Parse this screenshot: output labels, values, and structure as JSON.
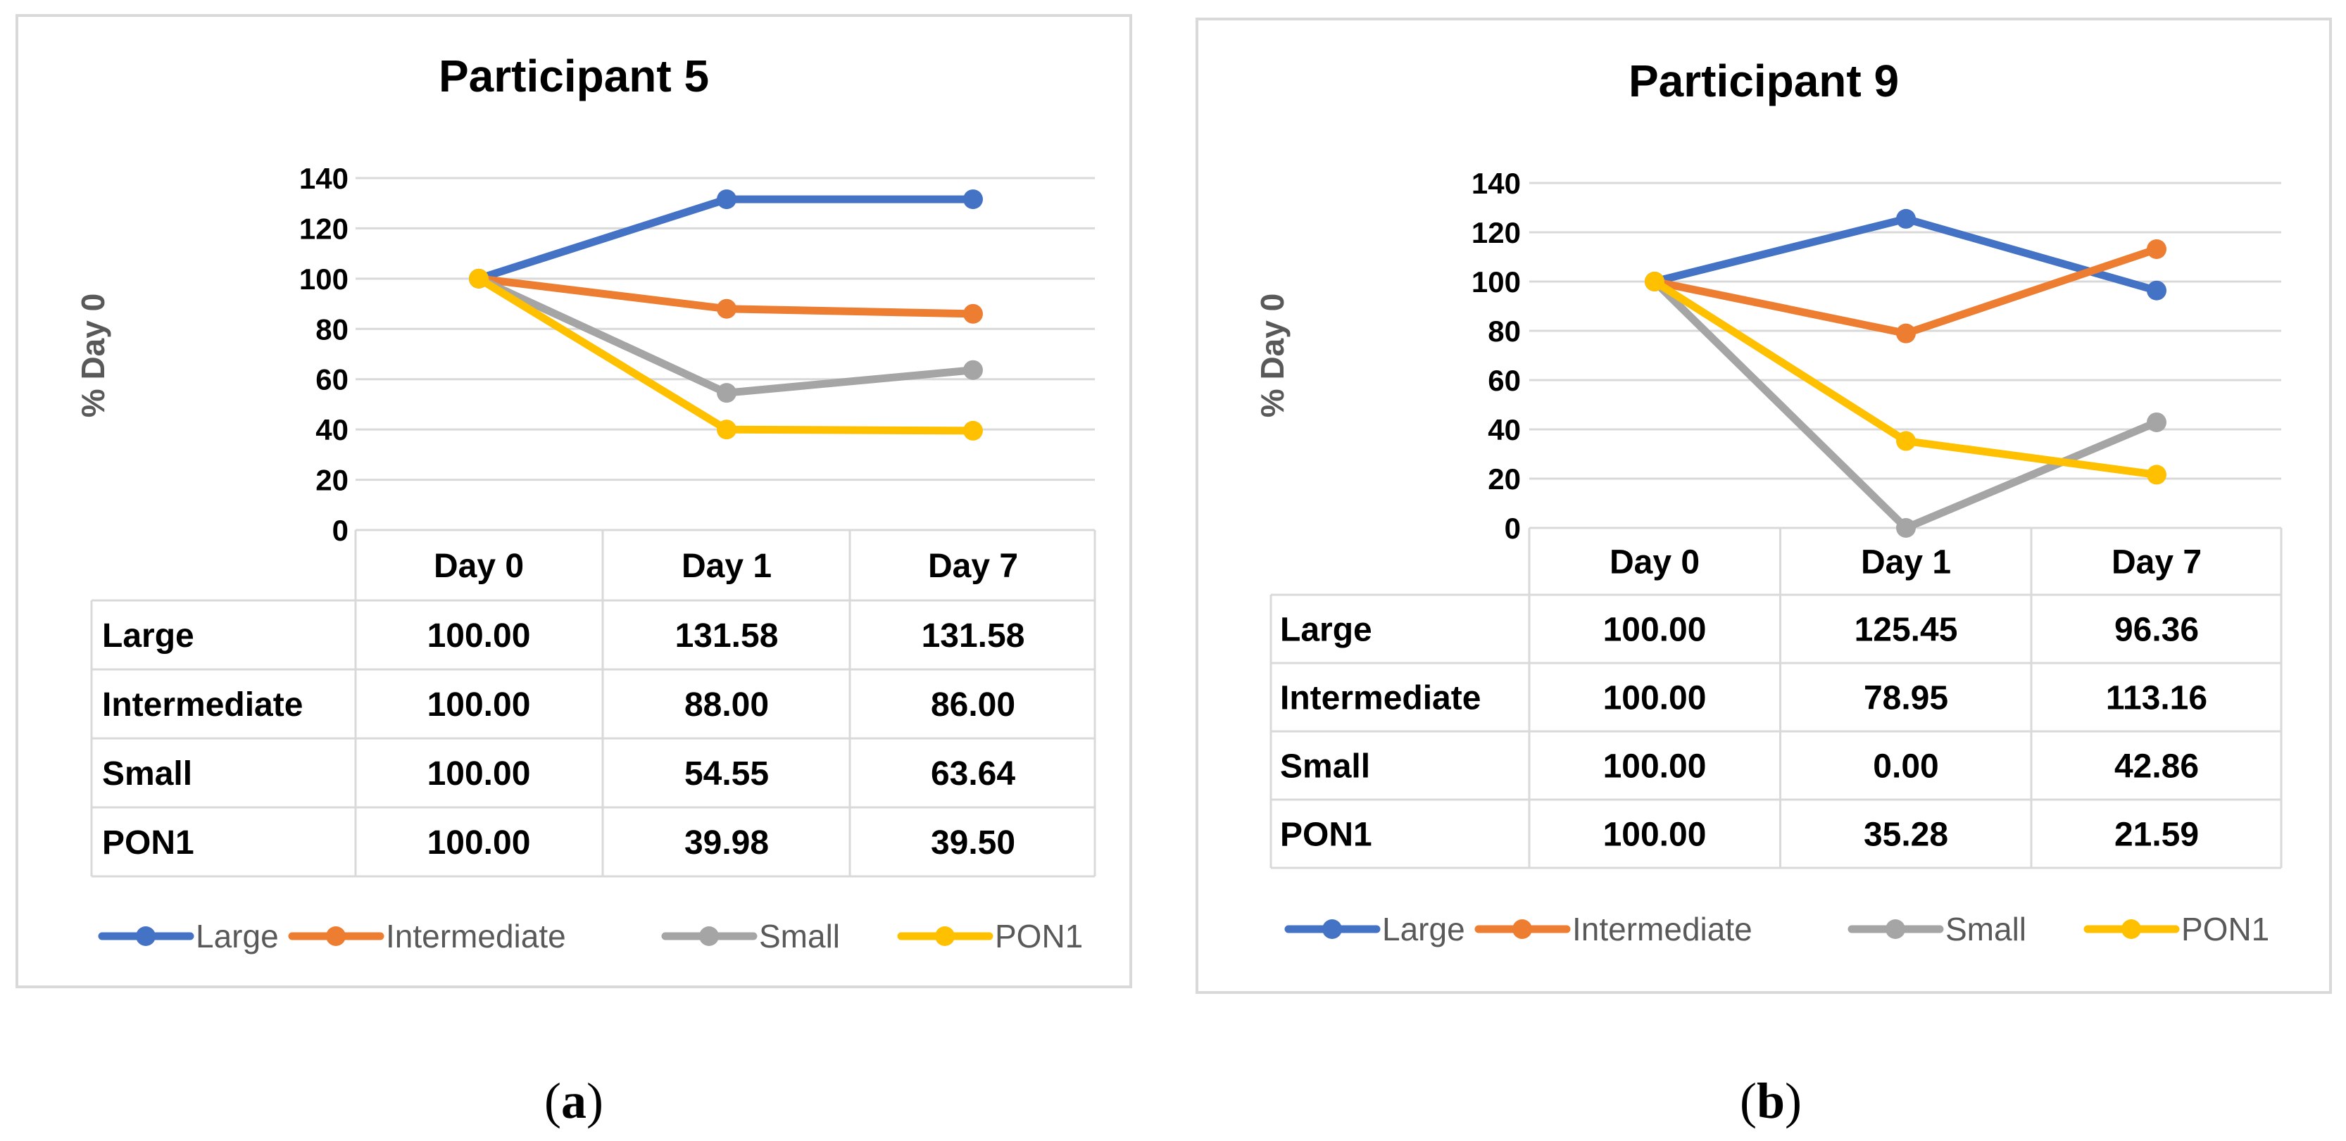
{
  "panel_labels": [
    "(a)",
    "(b)"
  ],
  "chart_data": [
    {
      "type": "line",
      "title": "Participant 5",
      "ylabel": "% Day 0",
      "xlabel": "",
      "categories": [
        "Day 0",
        "Day 1",
        "Day 7"
      ],
      "ylim": [
        0,
        140
      ],
      "yticks": [
        0,
        20,
        40,
        60,
        80,
        100,
        120,
        140
      ],
      "grid": true,
      "legend_position": "bottom",
      "data_table": true,
      "series": [
        {
          "name": "Large",
          "color": "#4472C4",
          "values": [
            100,
            131.58,
            131.58
          ],
          "labels": [
            "100.00",
            "131.58",
            "131.58"
          ]
        },
        {
          "name": "Intermediate",
          "color": "#ED7D31",
          "values": [
            100,
            88,
            86
          ],
          "labels": [
            "100.00",
            "88.00",
            "86.00"
          ]
        },
        {
          "name": "Small",
          "color": "#A5A5A5",
          "values": [
            100,
            54.55,
            63.64
          ],
          "labels": [
            "100.00",
            "54.55",
            "63.64"
          ]
        },
        {
          "name": "PON1",
          "color": "#FFC000",
          "values": [
            100,
            39.98,
            39.5
          ],
          "labels": [
            "100.00",
            "39.98",
            "39.50"
          ]
        }
      ]
    },
    {
      "type": "line",
      "title": "Participant 9",
      "ylabel": "% Day 0",
      "xlabel": "",
      "categories": [
        "Day 0",
        "Day 1",
        "Day 7"
      ],
      "ylim": [
        0,
        140
      ],
      "yticks": [
        0,
        20,
        40,
        60,
        80,
        100,
        120,
        140
      ],
      "grid": true,
      "legend_position": "bottom",
      "data_table": true,
      "series": [
        {
          "name": "Large",
          "color": "#4472C4",
          "values": [
            100,
            125.45,
            96.36
          ],
          "labels": [
            "100.00",
            "125.45",
            "96.36"
          ]
        },
        {
          "name": "Intermediate",
          "color": "#ED7D31",
          "values": [
            100,
            78.95,
            113.16
          ],
          "labels": [
            "100.00",
            "78.95",
            "113.16"
          ]
        },
        {
          "name": "Small",
          "color": "#A5A5A5",
          "values": [
            100,
            0,
            42.86
          ],
          "labels": [
            "100.00",
            "0.00",
            "42.86"
          ]
        },
        {
          "name": "PON1",
          "color": "#FFC000",
          "values": [
            100,
            35.28,
            21.59
          ],
          "labels": [
            "100.00",
            "35.28",
            "21.59"
          ]
        }
      ]
    }
  ]
}
